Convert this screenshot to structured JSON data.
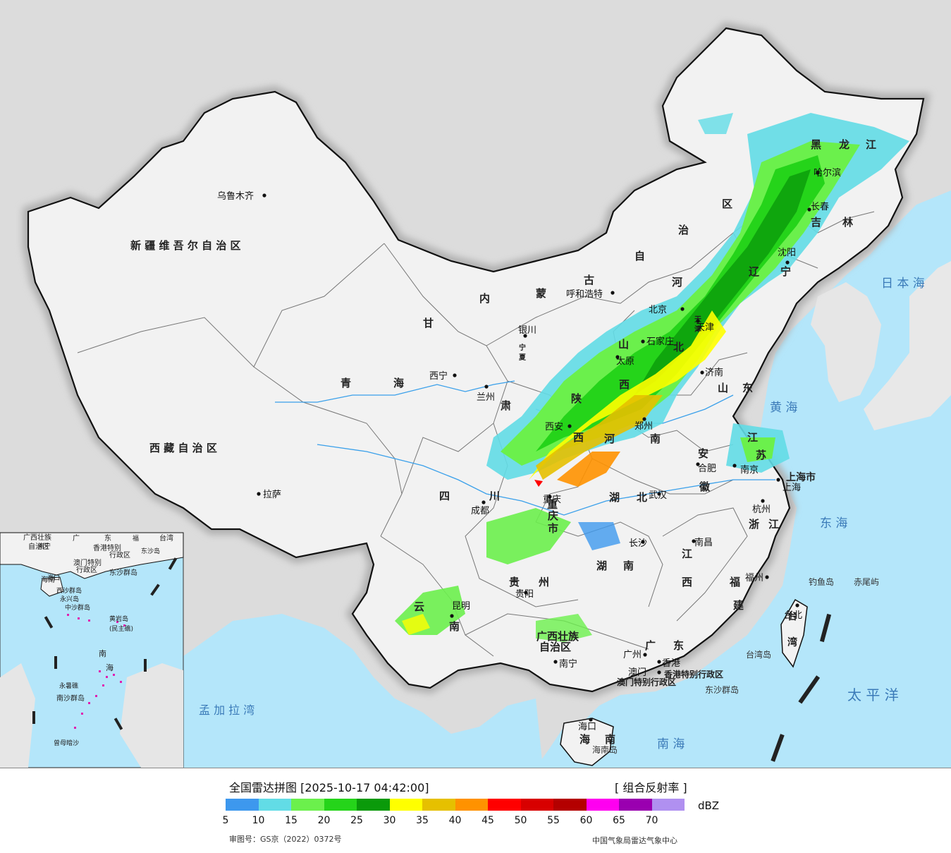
{
  "title": "全国雷达拼图 [2025-10-17 04:42:00]",
  "product": "[ 组合反射率 ]",
  "unit": "dBZ",
  "scale": {
    "ticks": [
      "5",
      "10",
      "15",
      "20",
      "25",
      "30",
      "35",
      "40",
      "45",
      "50",
      "55",
      "60",
      "65",
      "70"
    ],
    "colors": [
      "#3d98ee",
      "#62dce6",
      "#6bf04c",
      "#25d41a",
      "#0a9a0a",
      "#ffff00",
      "#e6c000",
      "#ff9200",
      "#ff0000",
      "#d80000",
      "#b40000",
      "#ff00f0",
      "#9a00b0",
      "#b090f0"
    ]
  },
  "approval": "审图号：GS京（2022）0372号",
  "agency": "中国气象局雷达气象中心",
  "colors": {
    "sea": "#b4e6fa",
    "land": "#f2f2f2",
    "outside": "#dcdcdc"
  },
  "regions": [
    {
      "text": "新 疆 维 吾 尔 自 治 区"
    },
    {
      "text": "西 藏 自 治 区"
    },
    {
      "text": "青"
    },
    {
      "text": "海"
    },
    {
      "text": "甘"
    },
    {
      "text": "肃"
    },
    {
      "text": "四"
    },
    {
      "text": "川"
    },
    {
      "text": "内"
    },
    {
      "text": "蒙"
    },
    {
      "text": "古"
    },
    {
      "text": "自"
    },
    {
      "text": "治"
    },
    {
      "text": "区"
    },
    {
      "text": "黑"
    },
    {
      "text": "龙"
    },
    {
      "text": "江"
    },
    {
      "text": "吉"
    },
    {
      "text": "林"
    },
    {
      "text": "辽"
    },
    {
      "text": "宁"
    },
    {
      "text": "河"
    },
    {
      "text": "北"
    },
    {
      "text": "山"
    },
    {
      "text": "西"
    },
    {
      "text": "山"
    },
    {
      "text": "东"
    },
    {
      "text": "陕"
    },
    {
      "text": "西"
    },
    {
      "text": "河"
    },
    {
      "text": "南"
    },
    {
      "text": "江"
    },
    {
      "text": "苏"
    },
    {
      "text": "安"
    },
    {
      "text": "徽"
    },
    {
      "text": "湖"
    },
    {
      "text": "北"
    },
    {
      "text": "重"
    },
    {
      "text": "庆"
    },
    {
      "text": "市"
    },
    {
      "text": "浙"
    },
    {
      "text": "江"
    },
    {
      "text": "上海市"
    },
    {
      "text": "湖"
    },
    {
      "text": "南"
    },
    {
      "text": "江"
    },
    {
      "text": "西"
    },
    {
      "text": "福"
    },
    {
      "text": "建"
    },
    {
      "text": "贵"
    },
    {
      "text": "州"
    },
    {
      "text": "云"
    },
    {
      "text": "南"
    },
    {
      "text": "广西壮族"
    },
    {
      "text": "自治区"
    },
    {
      "text": "广"
    },
    {
      "text": "东"
    },
    {
      "text": "台"
    },
    {
      "text": "湾"
    },
    {
      "text": "海"
    },
    {
      "text": "南"
    },
    {
      "text": "宁"
    },
    {
      "text": "夏"
    },
    {
      "text": "天"
    },
    {
      "text": "津"
    },
    {
      "text": "香港特别行政区"
    },
    {
      "text": "澳门特别行政区"
    }
  ],
  "cities": [
    {
      "text": "乌鲁木齐"
    },
    {
      "text": "拉萨"
    },
    {
      "text": "西宁"
    },
    {
      "text": "兰州"
    },
    {
      "text": "银川"
    },
    {
      "text": "呼和浩特"
    },
    {
      "text": "北京"
    },
    {
      "text": "天津"
    },
    {
      "text": "石家庄"
    },
    {
      "text": "太原"
    },
    {
      "text": "济南"
    },
    {
      "text": "郑州"
    },
    {
      "text": "西安"
    },
    {
      "text": "成都"
    },
    {
      "text": "重庆"
    },
    {
      "text": "武汉"
    },
    {
      "text": "合肥"
    },
    {
      "text": "南京"
    },
    {
      "text": "上海"
    },
    {
      "text": "杭州"
    },
    {
      "text": "长沙"
    },
    {
      "text": "南昌"
    },
    {
      "text": "福州"
    },
    {
      "text": "台北"
    },
    {
      "text": "贵阳"
    },
    {
      "text": "昆明"
    },
    {
      "text": "南宁"
    },
    {
      "text": "广州"
    },
    {
      "text": "香港"
    },
    {
      "text": "澳门"
    },
    {
      "text": "海口"
    },
    {
      "text": "沈阳"
    },
    {
      "text": "长春"
    },
    {
      "text": "哈尔滨"
    }
  ],
  "seas": [
    {
      "text": "日 本 海"
    },
    {
      "text": "黄 海"
    },
    {
      "text": "东 海"
    },
    {
      "text": "太 平 洋"
    },
    {
      "text": "南   海"
    },
    {
      "text": "孟 加 拉 湾"
    }
  ],
  "islands": [
    {
      "text": "钓鱼岛"
    },
    {
      "text": "赤尾屿"
    },
    {
      "text": "台湾岛"
    },
    {
      "text": "东沙群岛"
    },
    {
      "text": "海南岛"
    }
  ],
  "inset": {
    "labels": [
      {
        "text": "广西壮族"
      },
      {
        "text": "自治区"
      },
      {
        "text": "广"
      },
      {
        "text": "东"
      },
      {
        "text": "福"
      },
      {
        "text": "台湾"
      },
      {
        "text": "香港特别"
      },
      {
        "text": "行政区"
      },
      {
        "text": "澳门特别"
      },
      {
        "text": "行政区"
      },
      {
        "text": "东沙群岛"
      },
      {
        "text": "海南"
      },
      {
        "text": "西沙群岛"
      },
      {
        "text": "中沙群岛"
      },
      {
        "text": "黄岩岛"
      },
      {
        "text": "(民主礁)"
      },
      {
        "text": "南"
      },
      {
        "text": "海"
      },
      {
        "text": "南沙群岛"
      },
      {
        "text": "曾母暗沙"
      },
      {
        "text": "永暑礁"
      },
      {
        "text": "东沙岛"
      },
      {
        "text": "南宁"
      },
      {
        "text": "海口"
      },
      {
        "text": "永兴岛"
      }
    ]
  }
}
